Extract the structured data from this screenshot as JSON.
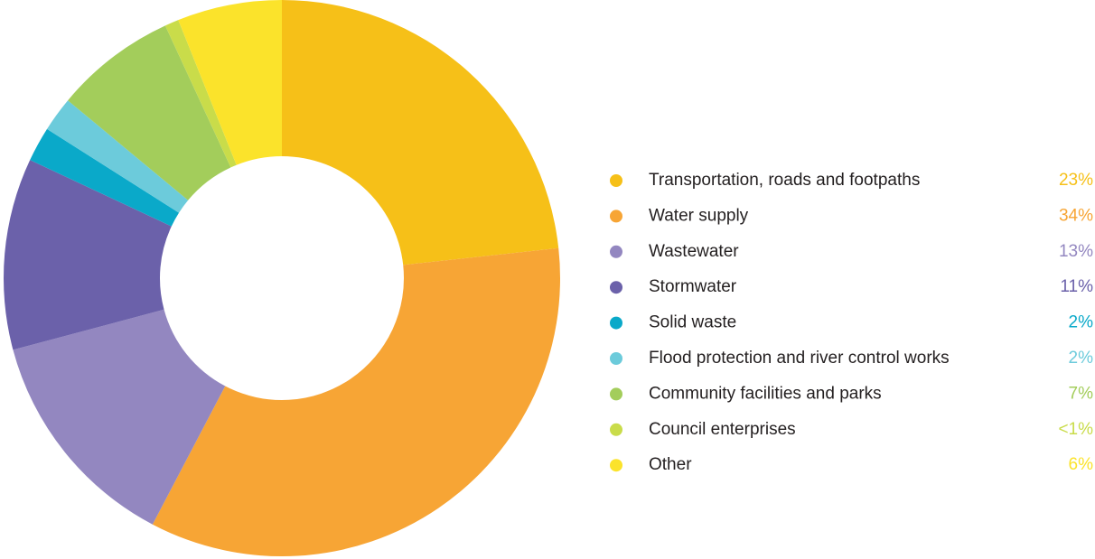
{
  "chart_data": {
    "type": "donut",
    "categories": [
      "Transportation, roads and footpaths",
      "Water supply",
      "Wastewater",
      "Stormwater",
      "Solid waste",
      "Flood protection and river control works",
      "Community facilities and parks",
      "Council enterprises",
      "Other"
    ],
    "values": [
      23,
      34,
      13,
      11,
      2,
      2,
      7,
      0.8,
      6
    ],
    "value_labels": [
      "23%",
      "34%",
      "13%",
      "11%",
      "2%",
      "2%",
      "7%",
      "<1%",
      "6%"
    ],
    "colors": [
      "#f6c018",
      "#f7a535",
      "#9387c0",
      "#6b61aa",
      "#0aa9c9",
      "#6ccbdb",
      "#a3cd5b",
      "#c9dc4a",
      "#fbe32b"
    ]
  }
}
